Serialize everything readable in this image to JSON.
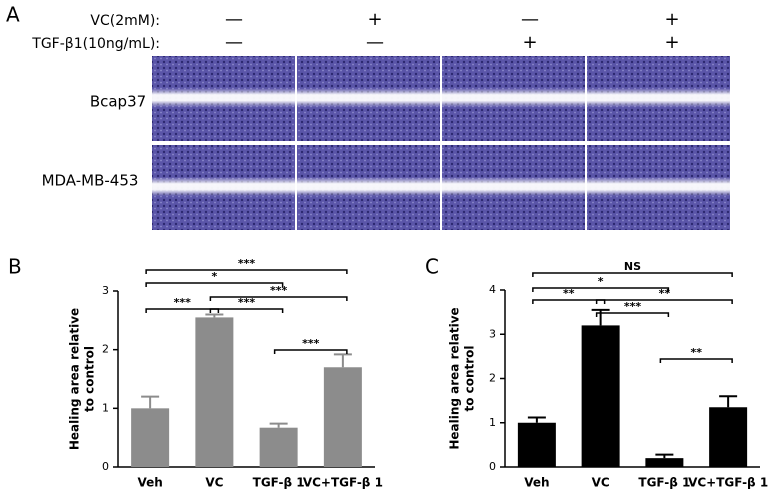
{
  "panel_a": {
    "label": "A",
    "conditions": [
      {
        "name": "VC(2mM):",
        "signs": [
          "—",
          "+",
          "—",
          "+"
        ]
      },
      {
        "name": "TGF-β1(10ng/mL):",
        "signs": [
          "—",
          "—",
          "+",
          "+"
        ]
      }
    ],
    "rows": [
      "Bcap37",
      "MDA-MB-453"
    ]
  },
  "chart_data": [
    {
      "type": "bar",
      "panel": "B",
      "ylabel": [
        "Healing area relative",
        "to control"
      ],
      "categories": [
        "Veh",
        "VC",
        "TGF-β 1",
        "VC+TGF-β 1"
      ],
      "values": [
        1.0,
        2.55,
        0.67,
        1.7
      ],
      "errors": [
        0.2,
        0.05,
        0.07,
        0.22
      ],
      "color": "#8c8c8c",
      "ylim": [
        0,
        3
      ],
      "yticks": [
        0,
        1,
        2,
        3
      ],
      "significance": [
        {
          "pair": [
            0,
            3
          ],
          "label": "***"
        },
        {
          "pair": [
            0,
            2
          ],
          "label": "*"
        },
        {
          "pair": [
            1,
            3
          ],
          "label": "***"
        },
        {
          "pair": [
            0,
            1
          ],
          "label": "***"
        },
        {
          "pair": [
            1,
            2
          ],
          "label": "***"
        },
        {
          "pair": [
            2,
            3
          ],
          "label": "***"
        }
      ]
    },
    {
      "type": "bar",
      "panel": "C",
      "ylabel": [
        "Healing area relative",
        "to control"
      ],
      "categories": [
        "Veh",
        "VC",
        "TGF-β 1",
        "VC+TGF-β 1"
      ],
      "values": [
        1.0,
        3.2,
        0.2,
        1.35
      ],
      "errors": [
        0.12,
        0.35,
        0.08,
        0.25
      ],
      "color": "#000000",
      "ylim": [
        0,
        4
      ],
      "yticks": [
        0,
        1,
        2,
        3,
        4
      ],
      "significance": [
        {
          "pair": [
            0,
            3
          ],
          "label": "NS"
        },
        {
          "pair": [
            0,
            2
          ],
          "label": "*"
        },
        {
          "pair": [
            0,
            1
          ],
          "label": "**"
        },
        {
          "pair": [
            1,
            3
          ],
          "label": "**"
        },
        {
          "pair": [
            1,
            2
          ],
          "label": "***"
        },
        {
          "pair": [
            2,
            3
          ],
          "label": "**"
        }
      ]
    }
  ]
}
